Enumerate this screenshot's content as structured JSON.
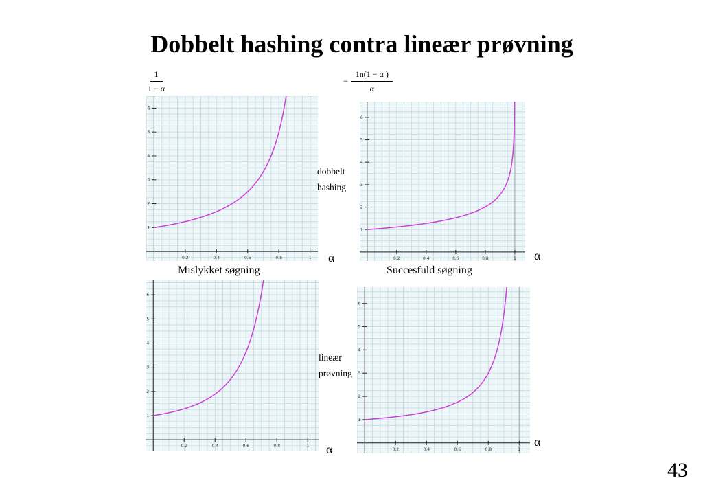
{
  "slide": {
    "title": "Dobbelt hashing contra lineær prøvning",
    "page_number": "43",
    "formula_unsuccessful": {
      "numerator": "1",
      "denominator": "1 − α"
    },
    "formula_successful": {
      "sign": "−",
      "numerator": "1n(1 − α )",
      "denominator": "α"
    },
    "label_double_hashing": [
      "dobbelt",
      "hashing"
    ],
    "label_linear_probing": [
      "lineær",
      "prøvning"
    ],
    "caption_unsuccessful": "Mislykket søgning",
    "caption_successful": "Succesfuld søgning",
    "alpha_symbol": "α"
  },
  "chart_data": [
    {
      "type": "line",
      "id": "double-hashing-unsuccessful",
      "function": "1/(1-α)",
      "x": [
        0,
        0.2,
        0.4,
        0.6,
        0.8,
        0.85
      ],
      "y": [
        1,
        1.25,
        1.67,
        2.5,
        5,
        6.67
      ],
      "xlim": [
        -0.05,
        1.05
      ],
      "ylim": [
        -0.4,
        6.5
      ],
      "x_ticks": [
        "0.2",
        "0.4",
        "0.6",
        "0.8",
        "1"
      ],
      "y_ticks": [
        "1",
        "2",
        "3",
        "4",
        "5",
        "6"
      ],
      "line_color": "#cc3fd6",
      "grid": true
    },
    {
      "type": "line",
      "id": "double-hashing-successful",
      "function": "-ln(1-α)/α",
      "x": [
        0.05,
        0.2,
        0.4,
        0.6,
        0.8,
        0.9,
        0.95,
        0.99
      ],
      "y": [
        1.03,
        1.12,
        1.28,
        1.53,
        2.01,
        2.56,
        3.15,
        4.65
      ],
      "xlim": [
        -0.05,
        1.07
      ],
      "ylim": [
        -0.4,
        6.7
      ],
      "x_ticks": [
        "0.2",
        "0.4",
        "0.6",
        "0.8",
        "1"
      ],
      "y_ticks": [
        "1",
        "2",
        "3",
        "4",
        "5",
        "6"
      ],
      "line_color": "#cc3fd6",
      "grid": true
    },
    {
      "type": "line",
      "id": "linear-probing-unsuccessful",
      "function": "(1 + 1/(1-α)^2)/2",
      "x": [
        0,
        0.2,
        0.4,
        0.6,
        0.7
      ],
      "y": [
        1,
        1.28,
        1.89,
        3.63,
        6.06
      ],
      "xlim": [
        -0.05,
        1.07
      ],
      "ylim": [
        -0.45,
        6.6
      ],
      "x_ticks": [
        "0.2",
        "0.4",
        "0.6",
        "0.8",
        "1"
      ],
      "y_ticks": [
        "1",
        "2",
        "3",
        "4",
        "5",
        "6"
      ],
      "line_color": "#cc3fd6",
      "grid": true
    },
    {
      "type": "line",
      "id": "linear-probing-successful",
      "function": "(1 + 1/(1-α))/2",
      "x": [
        0,
        0.2,
        0.4,
        0.6,
        0.8,
        0.9
      ],
      "y": [
        1,
        1.13,
        1.33,
        1.75,
        3,
        5.5
      ],
      "xlim": [
        -0.05,
        1.07
      ],
      "ylim": [
        -0.45,
        6.7
      ],
      "x_ticks": [
        "0.2",
        "0.4",
        "0.6",
        "0.8",
        "1"
      ],
      "y_ticks": [
        "1",
        "2",
        "3",
        "4",
        "5",
        "6"
      ],
      "line_color": "#cc3fd6",
      "grid": true
    }
  ]
}
